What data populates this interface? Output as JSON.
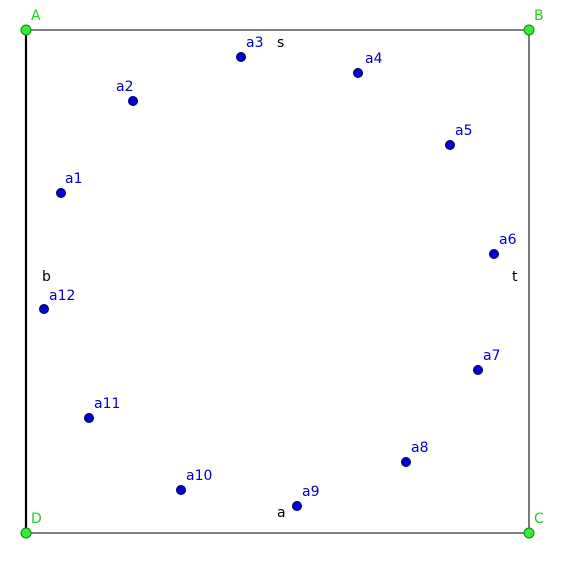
{
  "figure": {
    "vertices": [
      {
        "id": "A",
        "label": "A"
      },
      {
        "id": "B",
        "label": "B"
      },
      {
        "id": "C",
        "label": "C"
      },
      {
        "id": "D",
        "label": "D"
      }
    ],
    "side_labels": [
      {
        "id": "s",
        "label": "s"
      },
      {
        "id": "t",
        "label": "t"
      },
      {
        "id": "a",
        "label": "a"
      },
      {
        "id": "b",
        "label": "b"
      }
    ],
    "points": [
      {
        "id": "a1",
        "label": "a1"
      },
      {
        "id": "a2",
        "label": "a2"
      },
      {
        "id": "a3",
        "label": "a3"
      },
      {
        "id": "a4",
        "label": "a4"
      },
      {
        "id": "a5",
        "label": "a5"
      },
      {
        "id": "a6",
        "label": "a6"
      },
      {
        "id": "a7",
        "label": "a7"
      },
      {
        "id": "a8",
        "label": "a8"
      },
      {
        "id": "a9",
        "label": "a9"
      },
      {
        "id": "a10",
        "label": "a10"
      },
      {
        "id": "a11",
        "label": "a11"
      },
      {
        "id": "a12",
        "label": "a12"
      }
    ]
  },
  "colors": {
    "vertex_fill": "#33ee33",
    "vertex_stroke": "#118811",
    "vertex_label": "#22cc22",
    "point_fill": "#0000dd",
    "point_stroke": "#000044",
    "point_label": "#0000cc",
    "side_label": "#000000",
    "edge": "#333333",
    "edge_bold": "#000000"
  }
}
